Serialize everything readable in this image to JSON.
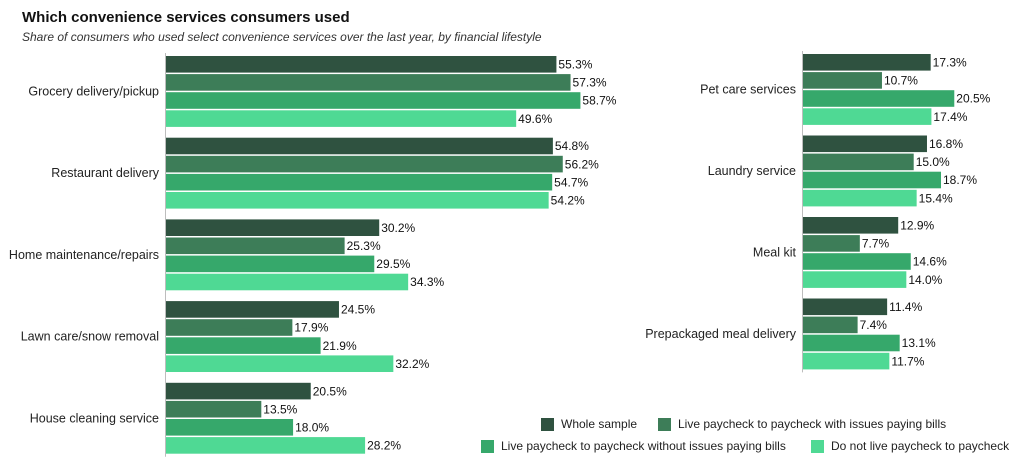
{
  "header": {
    "title": "Which convenience services consumers used",
    "subtitle": "Share of consumers who used select convenience services over the last year, by financial lifestyle"
  },
  "colors": [
    "#2f5240",
    "#3d7d58",
    "#36a86b",
    "#4fd994"
  ],
  "chart_data": [
    {
      "type": "bar",
      "orientation": "horizontal",
      "categories": [
        "Grocery delivery/pickup",
        "Restaurant delivery",
        "Home maintenance/repairs",
        "Lawn care/snow removal",
        "House cleaning service"
      ],
      "series": [
        {
          "name": "Whole sample",
          "values": [
            55.3,
            54.8,
            30.2,
            24.5,
            20.5
          ]
        },
        {
          "name": "Live paycheck to paycheck with issues paying bills",
          "values": [
            57.3,
            56.2,
            25.3,
            17.9,
            13.5
          ]
        },
        {
          "name": "Live paycheck to paycheck without issues paying bills",
          "values": [
            58.7,
            54.7,
            29.5,
            21.9,
            18.0
          ]
        },
        {
          "name": "Do not live paycheck to paycheck",
          "values": [
            49.6,
            54.2,
            34.3,
            32.2,
            28.2
          ]
        }
      ],
      "value_suffix": "%",
      "xlim": [
        0,
        100
      ]
    },
    {
      "type": "bar",
      "orientation": "horizontal",
      "categories": [
        "Pet care services",
        "Laundry service",
        "Meal kit",
        "Prepackaged meal delivery"
      ],
      "series": [
        {
          "name": "Whole sample",
          "values": [
            17.3,
            16.8,
            12.9,
            11.4
          ]
        },
        {
          "name": "Live paycheck to paycheck with issues paying bills",
          "values": [
            10.7,
            15.0,
            7.7,
            7.4
          ]
        },
        {
          "name": "Live paycheck to paycheck without issues paying bills",
          "values": [
            20.5,
            18.7,
            14.6,
            13.1
          ]
        },
        {
          "name": "Do not live paycheck to paycheck",
          "values": [
            17.4,
            15.4,
            14.0,
            11.7
          ]
        }
      ],
      "value_suffix": "%",
      "xlim": [
        0,
        100
      ]
    }
  ],
  "legend": {
    "items": [
      "Whole sample",
      "Live paycheck to paycheck with issues paying bills",
      "Live paycheck to paycheck without issues paying bills",
      "Do not live paycheck to paycheck"
    ]
  }
}
